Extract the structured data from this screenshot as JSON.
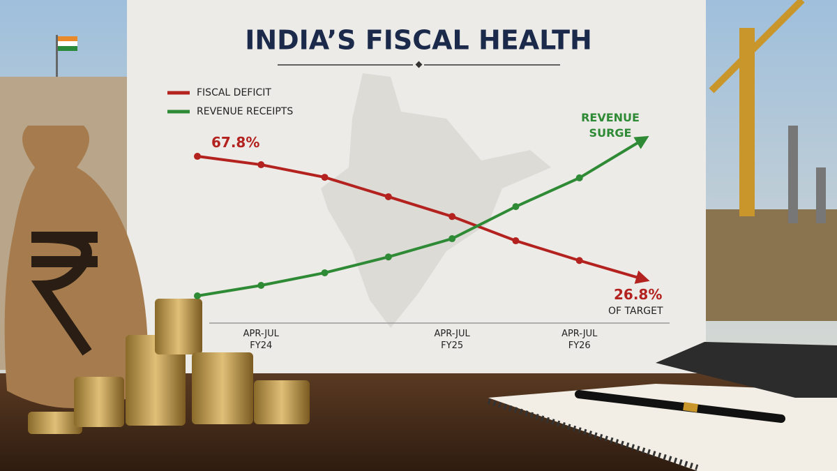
{
  "chart_data": {
    "type": "line",
    "title": "INDIA’S FISCAL HEALTH",
    "categories": [
      null,
      "APR-JUL FY24",
      null,
      null,
      "APR-JUL FY25",
      null,
      "APR-JUL FY26",
      null
    ],
    "series": [
      {
        "name": "FISCAL DEFICIT",
        "color": "#b3221f",
        "values": [
          67.8,
          65.0,
          60.8,
          54.3,
          47.7,
          39.6,
          33.0,
          26.8
        ],
        "value_labels": [
          "67.8%",
          null,
          null,
          null,
          null,
          null,
          null,
          "26.8%"
        ]
      },
      {
        "name": "REVENUE RECEIPTS",
        "color": "#2f8a35",
        "values": [
          21.2,
          24.7,
          28.9,
          34.2,
          40.3,
          51.0,
          60.6,
          73.4
        ]
      }
    ],
    "annotations": [
      "REVENUE SURGE",
      "OF TARGET"
    ],
    "legend": "top-left"
  }
}
